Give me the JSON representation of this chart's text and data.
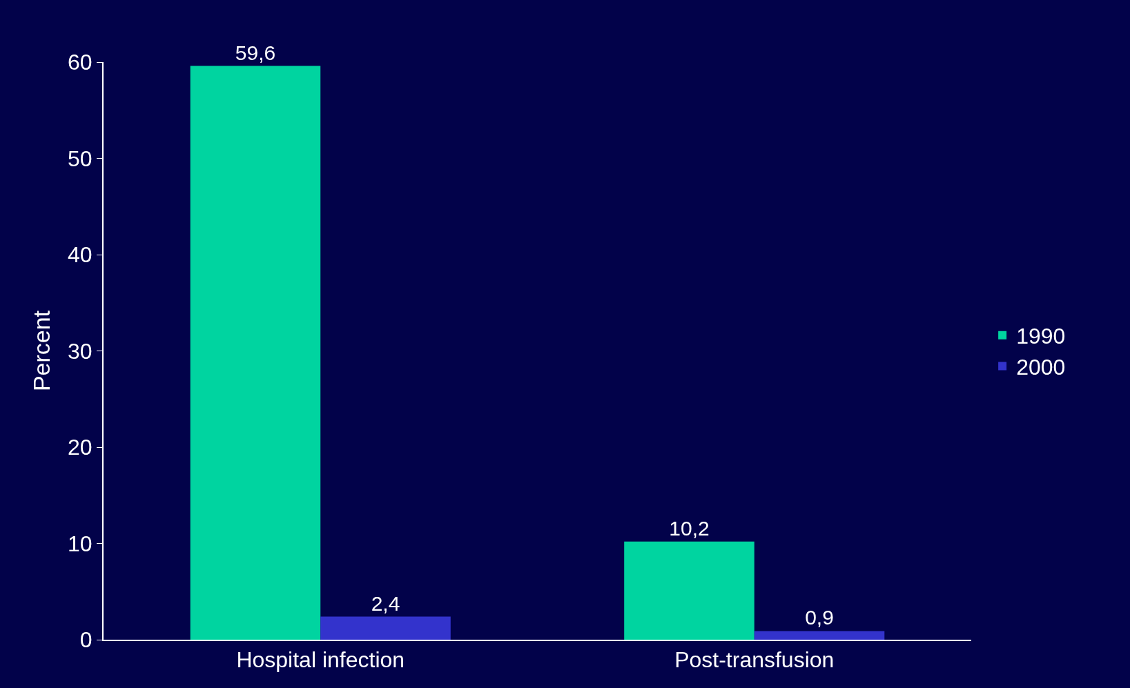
{
  "chart_data": {
    "type": "bar",
    "ylabel": "Percent",
    "categories": [
      "Hospital infection",
      "Post-transfusion"
    ],
    "series": [
      {
        "name": "1990",
        "color": "#00d4a0",
        "values": [
          59.6,
          10.2
        ],
        "value_labels": [
          "59,6",
          "10,2"
        ]
      },
      {
        "name": "2000",
        "color": "#3333cc",
        "values": [
          2.4,
          0.9
        ],
        "value_labels": [
          "2,4",
          "0,9"
        ]
      }
    ],
    "ylim": [
      0,
      60
    ],
    "yticks": [
      0,
      10,
      20,
      30,
      40,
      50,
      60
    ],
    "grid": false,
    "legend": "right"
  }
}
